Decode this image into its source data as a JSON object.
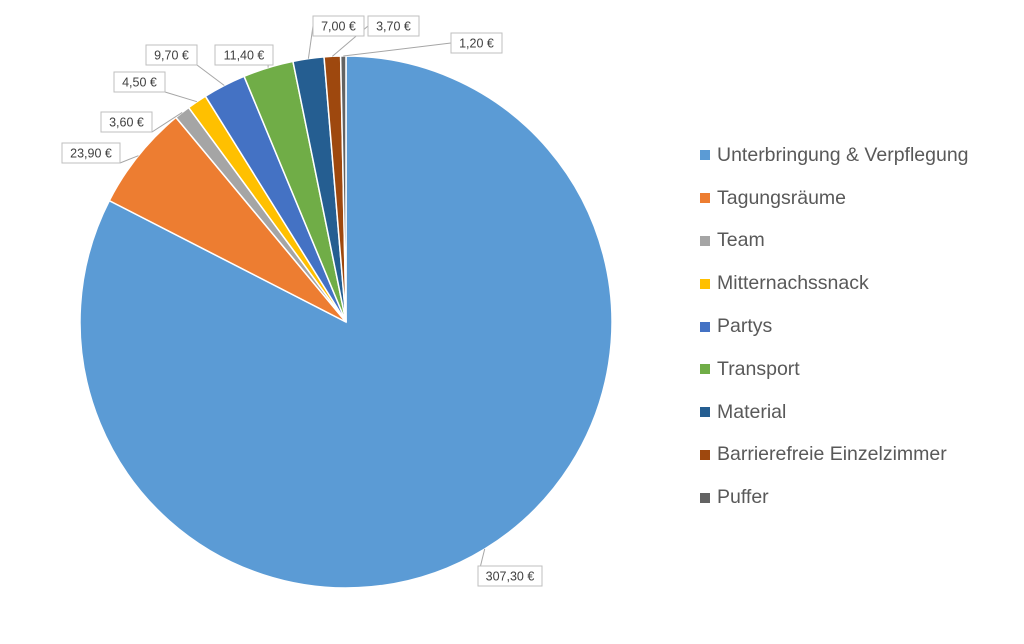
{
  "chart_data": {
    "type": "pie",
    "title": "",
    "legend_position": "right",
    "start_angle_deg": 0,
    "direction": "clockwise",
    "slices": [
      {
        "name": "Unterbringung & Verpflegung",
        "value": 307.3,
        "label": "307,30 €",
        "color": "#5b9bd5"
      },
      {
        "name": "Tagungsräume",
        "value": 23.9,
        "label": "23,90 €",
        "color": "#ed7d31"
      },
      {
        "name": "Team",
        "value": 3.6,
        "label": "3,60 €",
        "color": "#a5a5a5"
      },
      {
        "name": "Mitternachssnack",
        "value": 4.5,
        "label": "4,50 €",
        "color": "#ffc000"
      },
      {
        "name": "Partys",
        "value": 9.7,
        "label": "9,70 €",
        "color": "#4472c4"
      },
      {
        "name": "Transport",
        "value": 11.4,
        "label": "11,40 €",
        "color": "#70ad47"
      },
      {
        "name": "Material",
        "value": 7.0,
        "label": "7,00 €",
        "color": "#255e91"
      },
      {
        "name": "Barrierefreie Einzelzimmer",
        "value": 3.7,
        "label": "3,70 €",
        "color": "#9e480e"
      },
      {
        "name": "Puffer",
        "value": 1.2,
        "label": "1,20 €",
        "color": "#636363"
      }
    ]
  }
}
